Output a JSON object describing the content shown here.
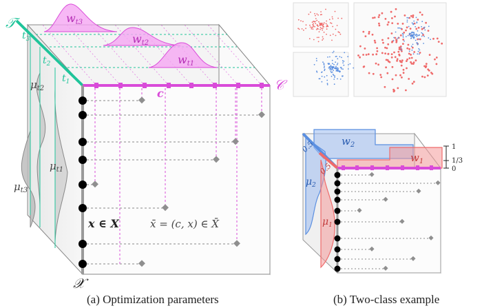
{
  "panel_a": {
    "caption": "(a) Optimization parameters",
    "axis_time": "𝒯",
    "axis_class": "𝒞",
    "axis_x": "𝒳",
    "class_point": "c",
    "time_ticks": [
      "t",
      "t",
      "t"
    ],
    "time_tick_subs": [
      "3",
      "2",
      "1"
    ],
    "w_labels": [
      "w",
      "w",
      "w"
    ],
    "w_subs": [
      "t3",
      "t2",
      "t1"
    ],
    "mu_labels": [
      "μ",
      "μ",
      "μ"
    ],
    "mu_subs": [
      "t2",
      "t1",
      "t3"
    ],
    "x_in_X": "x ∈ X",
    "xbar_def": "x̄ = (c, x) ∈ X̄",
    "colors": {
      "teal": "#1fc49a",
      "magenta": "#d94bd9",
      "gray": "#9a9a9a",
      "dark": "#222222"
    }
  },
  "panel_b": {
    "caption": "(b) Two-class example",
    "w2": "w",
    "w2_sub": "2",
    "w1": "w",
    "w1_sub": "1",
    "mu2": "μ",
    "mu2_sub": "2",
    "mu1": "μ",
    "mu1_sub": "1",
    "half_a": "0.5",
    "half_b": "0.5",
    "scale_ticks": [
      "1",
      "1/3",
      "0"
    ],
    "colors": {
      "blue": "#5b8fe0",
      "red": "#ef6b6b",
      "magenta": "#d94bd9"
    }
  }
}
